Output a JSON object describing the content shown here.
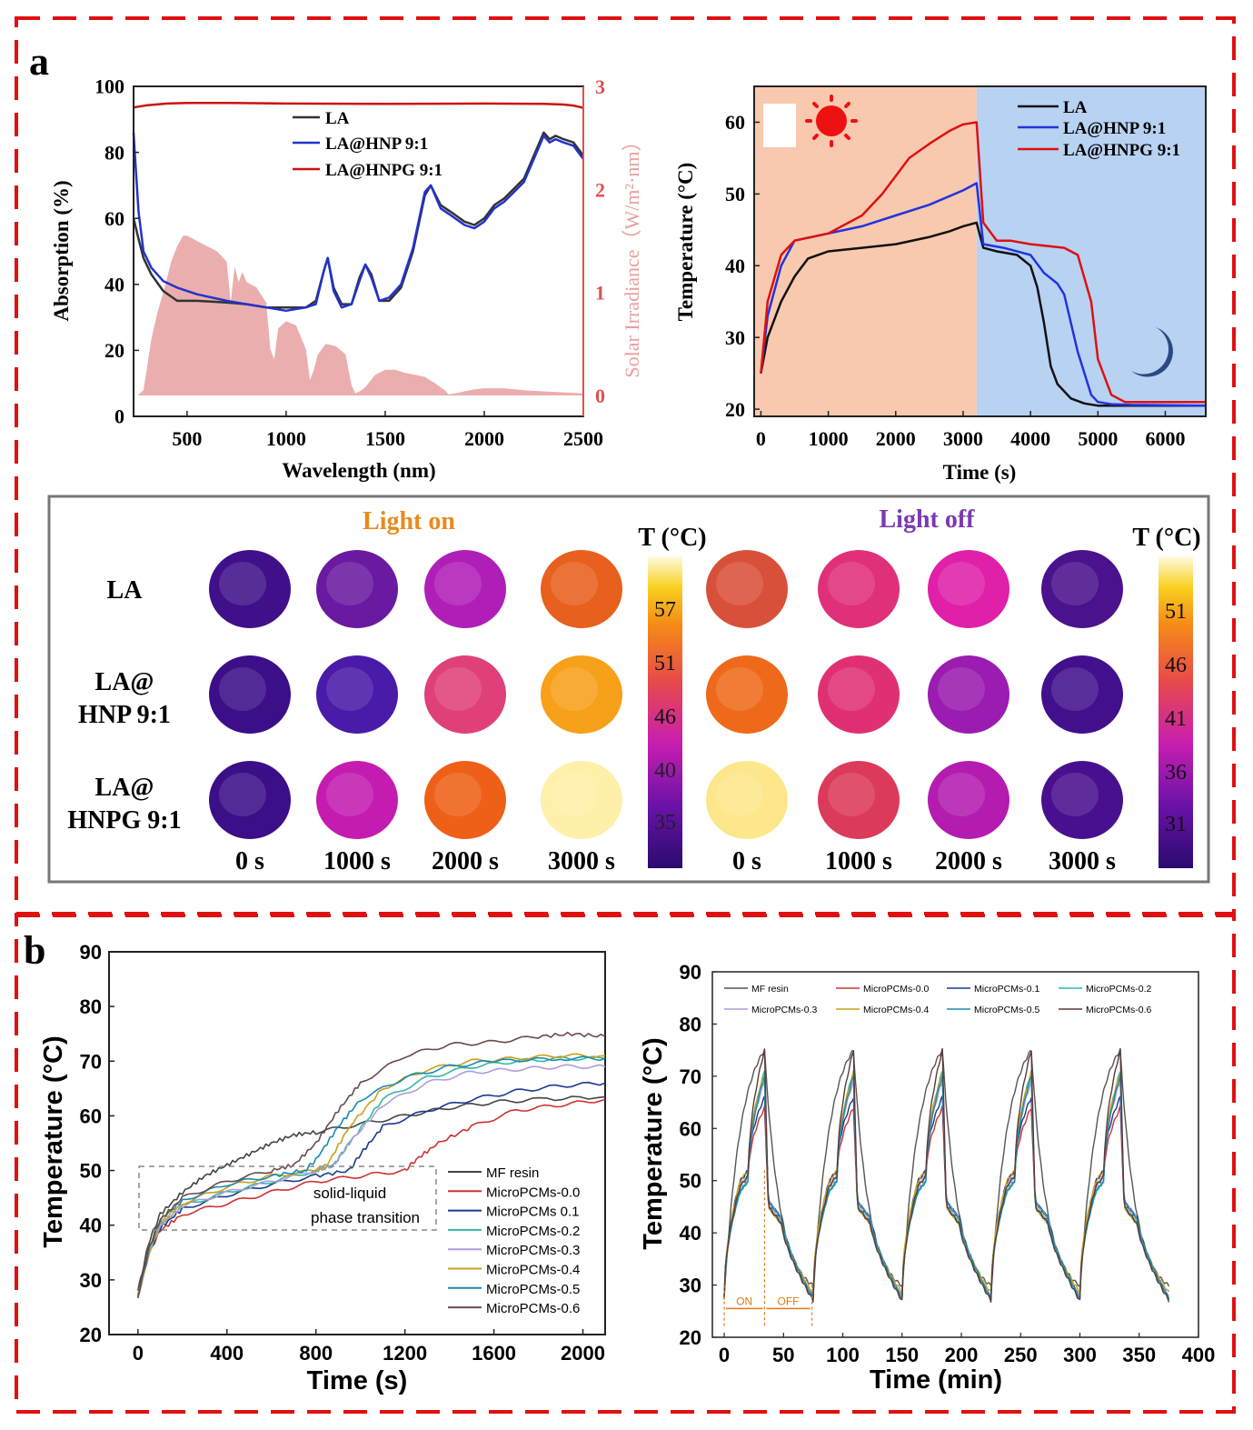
{
  "panels": {
    "a": "a",
    "b": "b"
  },
  "chart_data": [
    {
      "id": "absorption",
      "type": "line",
      "xlabel": "Wavelength (nm)",
      "ylabel": "Absorption (%)",
      "y2label": "Solar Irradiance（W/m²·nm）",
      "xlim": [
        230,
        2500
      ],
      "ylim": [
        0,
        100
      ],
      "y2lim": [
        0,
        3
      ],
      "xticks": [
        500,
        1000,
        1500,
        2000,
        2500
      ],
      "yticks": [
        0,
        20,
        40,
        60,
        80,
        100
      ],
      "y2ticks": [
        0,
        1,
        2,
        3
      ],
      "legend_position": "top-left",
      "series": [
        {
          "name": "LA",
          "color": "#333333",
          "x": [
            230,
            250,
            280,
            320,
            380,
            450,
            550,
            700,
            800,
            900,
            1000,
            1100,
            1150,
            1190,
            1210,
            1240,
            1280,
            1330,
            1370,
            1400,
            1430,
            1470,
            1520,
            1580,
            1640,
            1700,
            1730,
            1780,
            1830,
            1900,
            1950,
            2000,
            2050,
            2100,
            2150,
            2200,
            2250,
            2300,
            2330,
            2360,
            2400,
            2450,
            2500
          ],
          "y": [
            60,
            55,
            48,
            43,
            38,
            35,
            35,
            34.5,
            34,
            33,
            33,
            33,
            35,
            44,
            48,
            39,
            34,
            34,
            42,
            46,
            43,
            35,
            35,
            39,
            50,
            67,
            70,
            64,
            62,
            59,
            58,
            60,
            64,
            66,
            69,
            72,
            79,
            86,
            84,
            85,
            84,
            83,
            79
          ]
        },
        {
          "name": "LA@HNP 9:1",
          "color": "#2233cc",
          "x": [
            230,
            240,
            255,
            280,
            320,
            380,
            450,
            550,
            700,
            800,
            900,
            1000,
            1100,
            1150,
            1190,
            1210,
            1240,
            1280,
            1330,
            1370,
            1400,
            1430,
            1470,
            1520,
            1580,
            1640,
            1700,
            1730,
            1780,
            1830,
            1900,
            1950,
            2000,
            2050,
            2100,
            2150,
            2200,
            2250,
            2300,
            2330,
            2360,
            2400,
            2450,
            2500
          ],
          "y": [
            86,
            76,
            62,
            50,
            45,
            41,
            39,
            37,
            35,
            34,
            33,
            32,
            33,
            34,
            44,
            48,
            38,
            33,
            34,
            41,
            46,
            42,
            35,
            36,
            40,
            51,
            68,
            70,
            63,
            61,
            58,
            57,
            59,
            63,
            65,
            68,
            71,
            78,
            85,
            83,
            84,
            83,
            82,
            78
          ]
        },
        {
          "name": "LA@HNPG 9:1",
          "color": "#cc1111",
          "x": [
            230,
            300,
            400,
            500,
            700,
            1000,
            1500,
            2000,
            2300,
            2400,
            2450,
            2500
          ],
          "y": [
            93.6,
            94.3,
            94.8,
            95,
            95,
            94.8,
            94.7,
            94.8,
            94.7,
            94.5,
            94.2,
            93.5
          ]
        },
        {
          "name": "Solar Irradiance",
          "color": "#e8a0a0",
          "axis": "y2",
          "x": [
            250,
            280,
            300,
            320,
            350,
            380,
            400,
            420,
            450,
            480,
            500,
            550,
            600,
            650,
            700,
            720,
            740,
            760,
            780,
            800,
            850,
            900,
            920,
            940,
            960,
            1000,
            1050,
            1100,
            1120,
            1140,
            1160,
            1200,
            1250,
            1300,
            1330,
            1350,
            1380,
            1400,
            1450,
            1500,
            1550,
            1600,
            1650,
            1700,
            1750,
            1800,
            1820,
            1850,
            1900,
            1950,
            2000,
            2100,
            2200,
            2300,
            2400,
            2500
          ],
          "y": [
            0,
            0.05,
            0.3,
            0.55,
            0.8,
            1.0,
            1.15,
            1.3,
            1.45,
            1.55,
            1.55,
            1.5,
            1.45,
            1.4,
            1.3,
            0.9,
            1.25,
            1.1,
            1.2,
            1.1,
            1.05,
            0.9,
            0.45,
            0.35,
            0.65,
            0.72,
            0.68,
            0.45,
            0.15,
            0.25,
            0.4,
            0.5,
            0.48,
            0.4,
            0.1,
            0.02,
            0.05,
            0.08,
            0.2,
            0.25,
            0.25,
            0.22,
            0.2,
            0.18,
            0.12,
            0.05,
            0.01,
            0.02,
            0.04,
            0.06,
            0.07,
            0.07,
            0.05,
            0.04,
            0.03,
            0.02
          ]
        }
      ]
    },
    {
      "id": "temp-light",
      "type": "line",
      "xlabel": "Time (s)",
      "ylabel": "Temperature (°C)",
      "xlim": [
        -100,
        6600
      ],
      "ylim": [
        19,
        65
      ],
      "xticks": [
        0,
        1000,
        2000,
        3000,
        4000,
        5000,
        6000
      ],
      "yticks": [
        20,
        30,
        40,
        50,
        60
      ],
      "light_on_until": 3200,
      "legend_position": "top-right",
      "series": [
        {
          "name": "LA",
          "color": "#111111",
          "x": [
            0,
            100,
            300,
            500,
            700,
            1000,
            1500,
            2000,
            2500,
            2800,
            3000,
            3200,
            3300,
            3500,
            3800,
            4000,
            4100,
            4200,
            4300,
            4400,
            4600,
            4800,
            5000,
            6600
          ],
          "y": [
            25,
            30,
            35,
            38.5,
            41,
            42,
            42.5,
            43,
            44,
            44.8,
            45.5,
            46,
            42.5,
            42,
            41.5,
            40,
            37,
            32,
            26,
            23.5,
            21.5,
            20.8,
            20.5,
            20.5
          ]
        },
        {
          "name": "LA@HNP 9:1",
          "color": "#2233dd",
          "x": [
            0,
            100,
            300,
            500,
            1000,
            1500,
            2000,
            2500,
            3000,
            3200,
            3300,
            3600,
            4000,
            4200,
            4400,
            4500,
            4700,
            4900,
            5000,
            5200,
            5500,
            6600
          ],
          "y": [
            25,
            33,
            40,
            43.5,
            44.5,
            45.5,
            47,
            48.5,
            50.5,
            51.5,
            43,
            42.5,
            41.5,
            39,
            37.5,
            36,
            28,
            22,
            21,
            20.7,
            20.6,
            20.5
          ]
        },
        {
          "name": "LA@HNPG 9:1",
          "color": "#dd1111",
          "x": [
            0,
            100,
            300,
            500,
            1000,
            1500,
            1800,
            2000,
            2200,
            2500,
            2800,
            3000,
            3200,
            3300,
            3500,
            3700,
            4000,
            4500,
            4700,
            4900,
            5000,
            5200,
            5400,
            6600
          ],
          "y": [
            25,
            35,
            41.5,
            43.5,
            44.5,
            47,
            50,
            52.5,
            55,
            57,
            58.8,
            59.7,
            60,
            46,
            43.5,
            43.5,
            43,
            42.5,
            41.5,
            35,
            27,
            22,
            21,
            21
          ]
        }
      ]
    },
    {
      "id": "temp-b-left",
      "type": "line",
      "xlabel": "Time (s)",
      "ylabel": "Temperature (°C)",
      "xlim": [
        -130,
        2100
      ],
      "ylim": [
        20,
        90
      ],
      "xticks": [
        0,
        400,
        800,
        1200,
        1600,
        2000
      ],
      "yticks": [
        20,
        30,
        40,
        50,
        60,
        70,
        80,
        90
      ],
      "annotation": [
        "solid-liquid",
        "phase transition"
      ],
      "legend_position": "bottom-right",
      "series": [
        {
          "name": "MF resin",
          "color": "#444444",
          "x": [
            0,
            50,
            100,
            200,
            300,
            400,
            500,
            600,
            700,
            800,
            1000,
            1200,
            1400,
            1600,
            1800,
            2100
          ],
          "y": [
            28,
            37,
            42,
            46,
            49,
            51,
            53,
            55,
            56.5,
            57,
            58.5,
            60,
            61.5,
            62.5,
            63,
            63.5
          ]
        },
        {
          "name": "MicroPCMs-0.0",
          "color": "#cc3333",
          "x": [
            0,
            50,
            100,
            200,
            400,
            600,
            800,
            1000,
            1200,
            1250,
            1350,
            1500,
            1700,
            1900,
            2100
          ],
          "y": [
            27,
            35,
            39,
            42,
            44,
            46,
            48,
            49,
            50,
            52,
            55,
            58,
            61,
            62,
            63
          ]
        },
        {
          "name": "MicroPCMs 0.1",
          "color": "#1a3a8f",
          "x": [
            0,
            50,
            100,
            200,
            400,
            600,
            800,
            950,
            1000,
            1100,
            1300,
            1500,
            1700,
            1900,
            2100
          ],
          "y": [
            27,
            35,
            39.5,
            43,
            45.5,
            47.5,
            49,
            50,
            53,
            58,
            61,
            63,
            64.5,
            65.5,
            66
          ]
        },
        {
          "name": "MicroPCMs-0.2",
          "color": "#33b8a0",
          "x": [
            0,
            50,
            100,
            200,
            400,
            600,
            800,
            880,
            950,
            1100,
            1300,
            1500,
            1700,
            1900,
            2100
          ],
          "y": [
            27,
            35,
            40,
            43.5,
            46,
            48,
            50,
            51,
            55,
            63,
            67,
            69,
            70,
            70.5,
            70.5
          ]
        },
        {
          "name": "MicroPCMs-0.3",
          "color": "#b19cd9",
          "x": [
            0,
            50,
            100,
            200,
            400,
            600,
            800,
            880,
            950,
            1100,
            1300,
            1500,
            1700,
            1900,
            2100
          ],
          "y": [
            27,
            35,
            40,
            43.5,
            46,
            48,
            50,
            51,
            55,
            62,
            66,
            68,
            68.5,
            69,
            69
          ]
        },
        {
          "name": "MicroPCMs-0.4",
          "color": "#c8a11a",
          "x": [
            0,
            50,
            100,
            200,
            400,
            600,
            800,
            850,
            950,
            1100,
            1300,
            1500,
            1700,
            1900,
            2100
          ],
          "y": [
            27,
            35,
            40.5,
            44,
            47,
            49,
            50,
            51,
            58,
            65,
            68.5,
            70,
            70.5,
            71,
            71
          ]
        },
        {
          "name": "MicroPCMs-0.5",
          "color": "#1a8ab0",
          "x": [
            0,
            50,
            100,
            200,
            400,
            600,
            750,
            800,
            900,
            1000,
            1200,
            1400,
            1600,
            1900,
            2100
          ],
          "y": [
            27,
            35.5,
            41,
            44.5,
            47.5,
            49,
            50,
            52,
            58,
            63,
            67,
            69,
            70,
            70.5,
            70.5
          ]
        },
        {
          "name": "MicroPCMs-0.6",
          "color": "#6b4a4a",
          "x": [
            0,
            50,
            100,
            200,
            400,
            600,
            700,
            800,
            900,
            1000,
            1200,
            1400,
            1600,
            1800,
            1950,
            2100
          ],
          "y": [
            27,
            36,
            41,
            45,
            48,
            50,
            51,
            55,
            61,
            66,
            71,
            73,
            73.5,
            74.5,
            75,
            74.5
          ]
        }
      ]
    },
    {
      "id": "temp-b-right",
      "type": "line",
      "xlabel": "Time (min)",
      "ylabel": "Temperature (°C)",
      "xlim": [
        -10,
        400
      ],
      "ylim": [
        20,
        90
      ],
      "xticks": [
        0,
        50,
        100,
        150,
        200,
        250,
        300,
        350,
        400
      ],
      "yticks": [
        20,
        30,
        40,
        50,
        60,
        70,
        80,
        90
      ],
      "cycle_period": 75,
      "cycles": 5,
      "cycle_labels": {
        "on": "ON",
        "off": "OFF"
      },
      "legend_position": "top",
      "series": [
        {
          "name": "MF resin",
          "color": "#555555",
          "peak": 75,
          "cool_end": 28,
          "shape": "fast"
        },
        {
          "name": "MicroPCMs-0.0",
          "color": "#cc3333",
          "peak": 64,
          "cool_end": 27.5,
          "shape": "pcm"
        },
        {
          "name": "MicroPCMs-0.1",
          "color": "#1a3a8f",
          "peak": 66,
          "cool_end": 27.5,
          "shape": "pcm"
        },
        {
          "name": "MicroPCMs-0.2",
          "color": "#33b8a0",
          "peak": 71,
          "cool_end": 27.5,
          "shape": "pcm"
        },
        {
          "name": "MicroPCMs-0.3",
          "color": "#b19cd9",
          "peak": 69,
          "cool_end": 27.5,
          "shape": "pcm"
        },
        {
          "name": "MicroPCMs-0.4",
          "color": "#c8a11a",
          "peak": 70.5,
          "cool_end": 28.5,
          "shape": "pcm"
        },
        {
          "name": "MicroPCMs-0.5",
          "color": "#1a8ab0",
          "peak": 70,
          "cool_end": 27.5,
          "shape": "pcm"
        },
        {
          "name": "MicroPCMs-0.6",
          "color": "#5a3a3a",
          "peak": 75,
          "cool_end": 27,
          "shape": "pcm"
        }
      ]
    }
  ],
  "thermal_images": {
    "on_title": "Light on",
    "off_title": "Light off",
    "scale_title": "T (°C)",
    "on_scale": [
      "57",
      "51",
      "46",
      "40",
      "35"
    ],
    "off_scale": [
      "51",
      "46",
      "41",
      "36",
      "31"
    ],
    "rows": [
      {
        "label_lines": [
          "LA"
        ],
        "colors": [
          "#40108a",
          "#6a1aa0",
          "#b01eb8",
          "#e8601e",
          "#d9503a",
          "#e0307a",
          "#e020a8",
          "#4a128c"
        ]
      },
      {
        "label_lines": [
          "LA@",
          "HNP 9:1"
        ],
        "colors": [
          "#3c0e88",
          "#4a1aa8",
          "#e0407a",
          "#f7a01a",
          "#ee6a1a",
          "#e03074",
          "#9a1cb0",
          "#42108c"
        ]
      },
      {
        "label_lines": [
          "LA@",
          "HNPG 9:1"
        ],
        "colors": [
          "#3c0e88",
          "#c41cb0",
          "#ee6018",
          "#fef0a8",
          "#fde78a",
          "#dc3a5a",
          "#b41cb0",
          "#48108e"
        ]
      }
    ],
    "time_labels": [
      "0 s",
      "1000 s",
      "2000 s",
      "3000 s",
      "0 s",
      "1000 s",
      "2000 s",
      "3000 s"
    ]
  }
}
